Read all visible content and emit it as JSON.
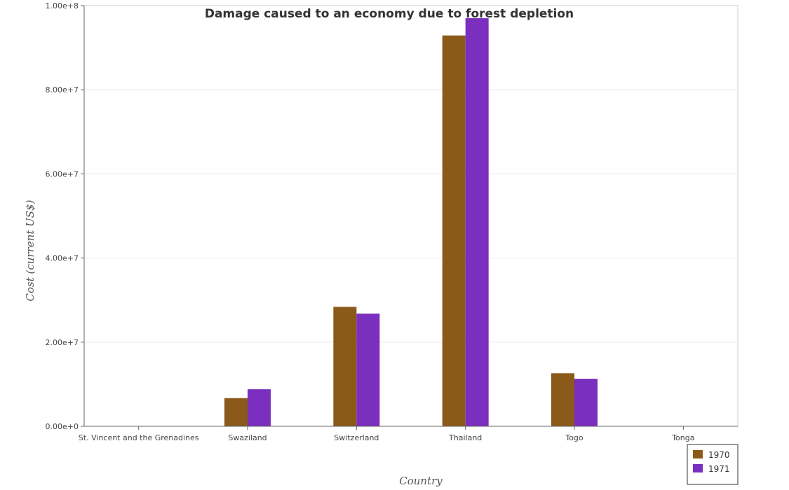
{
  "chart_data": {
    "type": "bar",
    "title": "Damage caused to an economy due to forest depletion",
    "xlabel": "Country",
    "ylabel": "Cost (current US$)",
    "categories": [
      "St. Vincent and the Grenadines",
      "Swaziland",
      "Switzerland",
      "Thailand",
      "Togo",
      "Tonga"
    ],
    "series": [
      {
        "name": "1970",
        "color": "#8B5A1A",
        "values": [
          5000,
          6700000,
          28400000,
          92900000,
          12600000,
          8000
        ]
      },
      {
        "name": "1971",
        "color": "#7B2FBE",
        "values": [
          5000,
          8800000,
          26800000,
          97000000,
          11300000,
          8000
        ]
      }
    ],
    "ylim": [
      0,
      100000000
    ],
    "yticks": [
      0,
      20000000,
      40000000,
      60000000,
      80000000,
      100000000
    ],
    "ytick_labels": [
      "0.00e+0",
      "2.00e+7",
      "4.00e+7",
      "6.00e+7",
      "8.00e+7",
      "1.00e+8"
    ],
    "grid": true,
    "legend_position": "bottom-right"
  }
}
